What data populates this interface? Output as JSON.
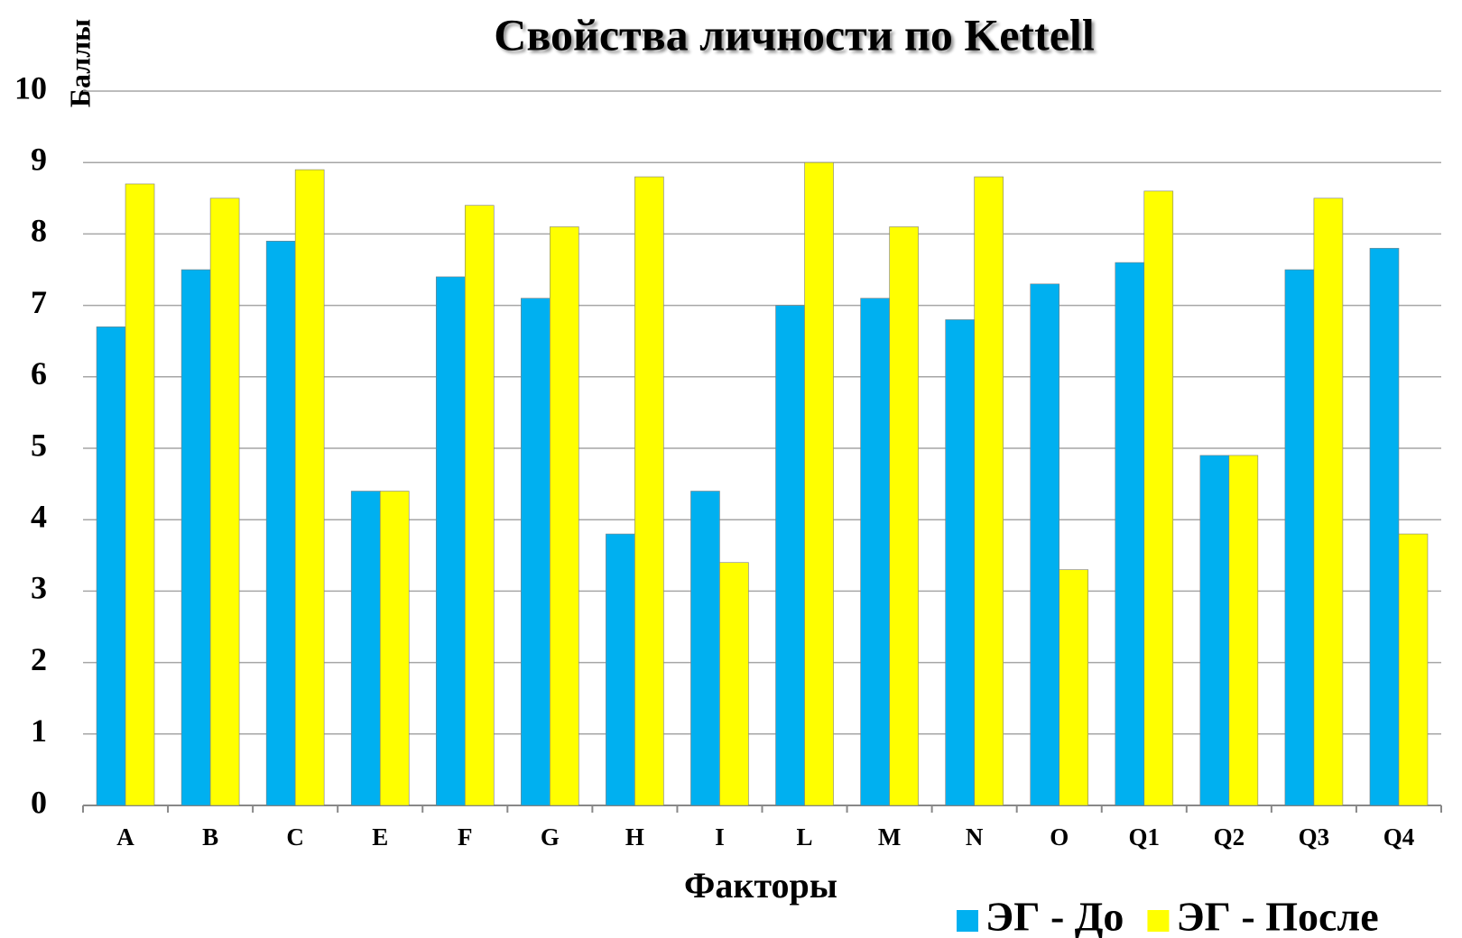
{
  "chart_data": {
    "type": "bar",
    "title": "Свойства личности по Kettell",
    "x_label": "Факторы",
    "y_label": "Баллы",
    "categories": [
      "A",
      "B",
      "C",
      "E",
      "F",
      "G",
      "H",
      "I",
      "L",
      "M",
      "N",
      "O",
      "Q1",
      "Q2",
      "Q3",
      "Q4"
    ],
    "series": [
      {
        "name": "ЭГ - До",
        "color": "#00b0f0",
        "values": [
          6.7,
          7.5,
          7.9,
          4.4,
          7.4,
          7.1,
          3.8,
          4.4,
          7.0,
          7.1,
          6.8,
          7.3,
          7.6,
          4.9,
          7.5,
          7.8
        ]
      },
      {
        "name": "ЭГ - После",
        "color": "#ffff00",
        "values": [
          8.7,
          8.5,
          8.9,
          4.4,
          8.4,
          8.1,
          8.8,
          3.4,
          9.0,
          8.1,
          8.8,
          3.3,
          8.6,
          4.9,
          8.5,
          3.8
        ]
      }
    ],
    "ylim": [
      0,
      10
    ],
    "yticks": [
      0,
      1,
      2,
      3,
      4,
      5,
      6,
      7,
      8,
      9,
      10
    ],
    "grid": true,
    "legend": "bottom-right"
  }
}
